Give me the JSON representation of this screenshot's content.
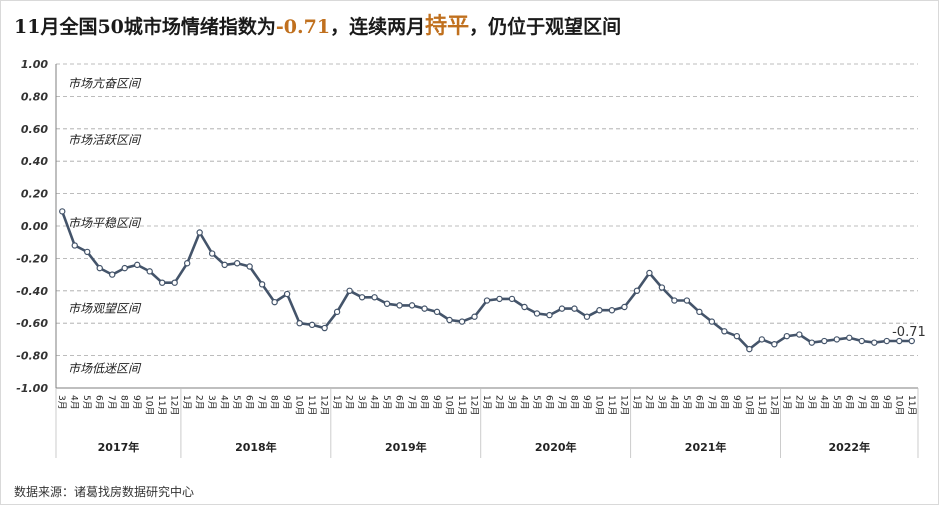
{
  "title": {
    "part1": "11月全国50城市场情绪指数为",
    "value": "-0.71",
    "part2": "，连续两月",
    "emph": "持平",
    "part3": "，仍位于观望区间"
  },
  "source": "数据来源：诸葛找房数据研究中心",
  "chart_data": {
    "type": "line",
    "title": "11月全国50城市场情绪指数为-0.71，连续两月持平，仍位于观望区间",
    "ylim": [
      -1.0,
      1.0
    ],
    "yticks": [
      "1.00",
      "0.80",
      "0.60",
      "0.40",
      "0.20",
      "0.00",
      "-0.20",
      "-0.40",
      "-0.60",
      "-0.80",
      "-1.00"
    ],
    "zones": [
      "市场亢奋区间",
      "市场活跃区间",
      "市场平稳区间",
      "市场观望区间",
      "市场低迷区间"
    ],
    "years": [
      "2017年",
      "2018年",
      "2019年",
      "2020年",
      "2021年",
      "2022年"
    ],
    "x": [
      "3月",
      "4月",
      "5月",
      "6月",
      "7月",
      "8月",
      "9月",
      "10月",
      "11月",
      "12月",
      "1月",
      "2月",
      "3月",
      "4月",
      "5月",
      "6月",
      "7月",
      "8月",
      "9月",
      "10月",
      "11月",
      "12月",
      "1月",
      "2月",
      "3月",
      "4月",
      "5月",
      "6月",
      "7月",
      "8月",
      "9月",
      "10月",
      "11月",
      "12月",
      "1月",
      "2月",
      "3月",
      "4月",
      "5月",
      "6月",
      "7月",
      "8月",
      "9月",
      "10月",
      "11月",
      "12月",
      "1月",
      "2月",
      "3月",
      "4月",
      "5月",
      "6月",
      "7月",
      "8月",
      "9月",
      "10月",
      "11月",
      "12月",
      "1月",
      "2月",
      "3月",
      "4月",
      "5月",
      "6月",
      "7月",
      "8月",
      "9月",
      "10月",
      "11月"
    ],
    "values": [
      0.09,
      -0.12,
      -0.16,
      -0.26,
      -0.3,
      -0.26,
      -0.24,
      -0.28,
      -0.35,
      -0.35,
      -0.23,
      -0.04,
      -0.17,
      -0.24,
      -0.23,
      -0.25,
      -0.36,
      -0.47,
      -0.42,
      -0.6,
      -0.61,
      -0.63,
      -0.53,
      -0.4,
      -0.44,
      -0.44,
      -0.48,
      -0.49,
      -0.49,
      -0.51,
      -0.53,
      -0.58,
      -0.59,
      -0.56,
      -0.46,
      -0.45,
      -0.45,
      -0.5,
      -0.54,
      -0.55,
      -0.51,
      -0.51,
      -0.56,
      -0.52,
      -0.52,
      -0.5,
      -0.4,
      -0.29,
      -0.38,
      -0.46,
      -0.46,
      -0.53,
      -0.59,
      -0.65,
      -0.68,
      -0.76,
      -0.7,
      -0.73,
      -0.68,
      -0.67,
      -0.72,
      -0.71,
      -0.7,
      -0.69,
      -0.71,
      -0.72,
      -0.71,
      -0.71,
      -0.71
    ],
    "last_label": "-0.71",
    "grid": true,
    "line_color": "#44546a",
    "accent_color": "#c0701e"
  }
}
